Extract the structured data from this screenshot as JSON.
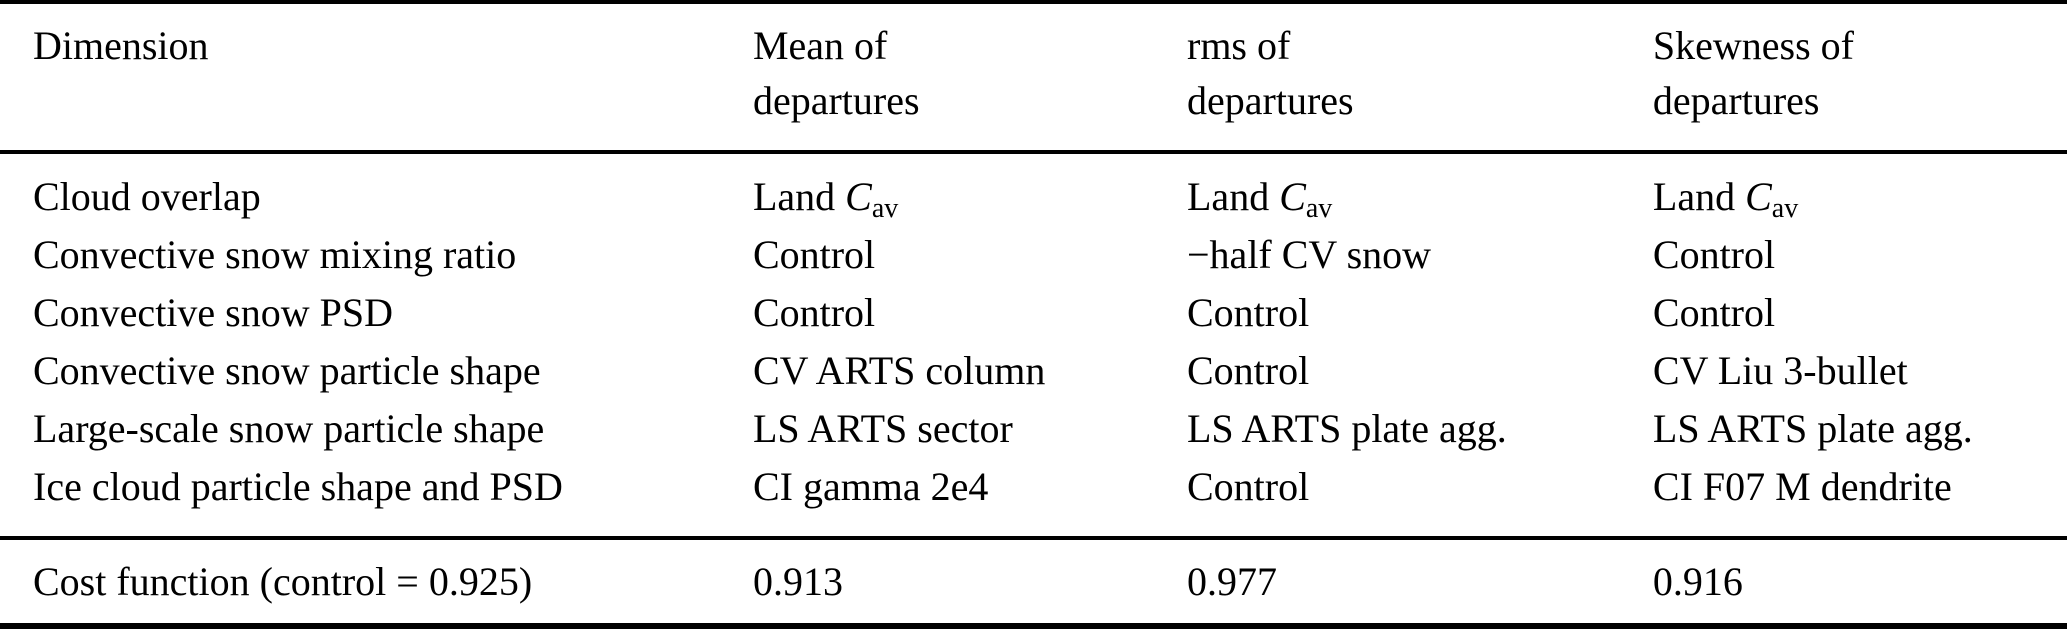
{
  "page": {
    "background_color": "#ffffff",
    "text_color": "#000000",
    "rule_color": "#000000"
  },
  "table": {
    "header": [
      {
        "line1": "Dimension",
        "line2": ""
      },
      {
        "line1": "Mean of",
        "line2": "departures"
      },
      {
        "line1": "rms of",
        "line2": "departures"
      },
      {
        "line1": "Skewness of",
        "line2": "departures"
      }
    ],
    "rows": [
      {
        "cells": [
          [
            {
              "text": "Cloud overlap"
            }
          ],
          [
            {
              "text": "Land "
            },
            {
              "text": "C",
              "format": "italic"
            },
            {
              "text": "av",
              "format": "subscript"
            }
          ],
          [
            {
              "text": "Land "
            },
            {
              "text": "C",
              "format": "italic"
            },
            {
              "text": "av",
              "format": "subscript"
            }
          ],
          [
            {
              "text": "Land "
            },
            {
              "text": "C",
              "format": "italic"
            },
            {
              "text": "av",
              "format": "subscript"
            }
          ]
        ]
      },
      {
        "cells": [
          [
            {
              "text": "Convective snow mixing ratio"
            }
          ],
          [
            {
              "text": "Control"
            }
          ],
          [
            {
              "text": "−half CV snow"
            }
          ],
          [
            {
              "text": "Control"
            }
          ]
        ]
      },
      {
        "cells": [
          [
            {
              "text": "Convective snow PSD"
            }
          ],
          [
            {
              "text": "Control"
            }
          ],
          [
            {
              "text": "Control"
            }
          ],
          [
            {
              "text": "Control"
            }
          ]
        ]
      },
      {
        "cells": [
          [
            {
              "text": "Convective snow particle shape"
            }
          ],
          [
            {
              "text": "CV ARTS column"
            }
          ],
          [
            {
              "text": "Control"
            }
          ],
          [
            {
              "text": "CV Liu 3-bullet"
            }
          ]
        ]
      },
      {
        "cells": [
          [
            {
              "text": "Large-scale snow particle shape"
            }
          ],
          [
            {
              "text": "LS ARTS sector"
            }
          ],
          [
            {
              "text": "LS ARTS plate agg."
            }
          ],
          [
            {
              "text": "LS ARTS plate agg."
            }
          ]
        ]
      },
      {
        "cells": [
          [
            {
              "text": "Ice cloud particle shape and PSD"
            }
          ],
          [
            {
              "text": "CI gamma 2e4"
            }
          ],
          [
            {
              "text": "Control"
            }
          ],
          [
            {
              "text": "CI F07 M dendrite"
            }
          ]
        ]
      }
    ],
    "footer": [
      "Cost function (control = 0.925)",
      "0.913",
      "0.977",
      "0.916"
    ]
  }
}
